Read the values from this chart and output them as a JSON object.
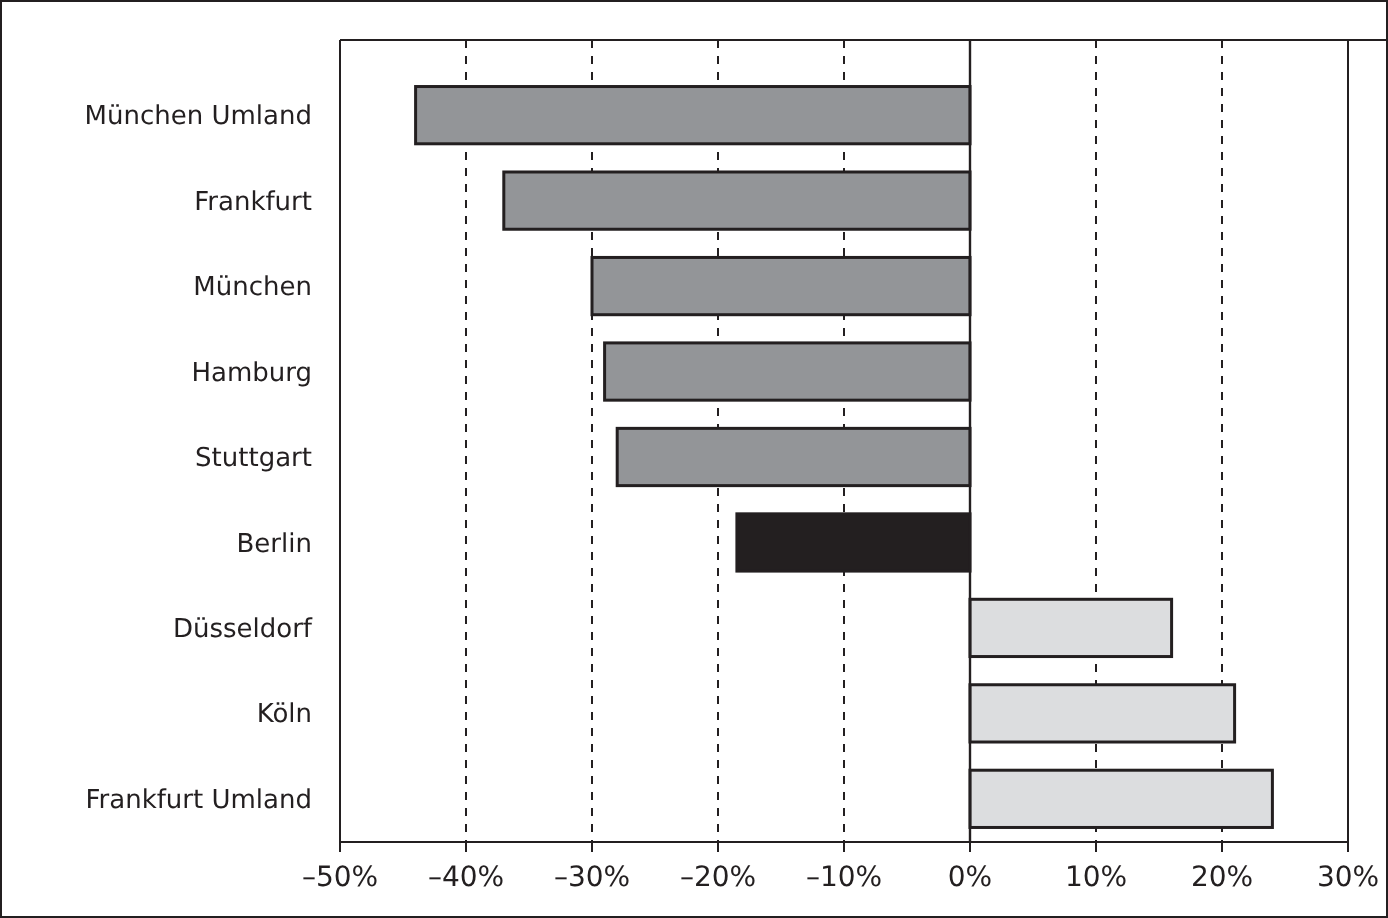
{
  "chart_data": {
    "type": "bar",
    "orientation": "horizontal",
    "categories": [
      "München Umland",
      "Frankfurt",
      "München",
      "Hamburg",
      "Stuttgart",
      "Berlin",
      "Düsseldorf",
      "Köln",
      "Frankfurt Umland"
    ],
    "values": [
      -44,
      -37,
      -30,
      -29,
      -28,
      -18.5,
      16,
      21,
      24
    ],
    "colors": [
      "#939598",
      "#939598",
      "#939598",
      "#939598",
      "#939598",
      "#231f20",
      "#dcdddf",
      "#dcdddf",
      "#dcdddf"
    ],
    "xlim": [
      -50,
      30
    ],
    "xticks": [
      {
        "value": -50,
        "label": "–50%"
      },
      {
        "value": -40,
        "label": "–40%"
      },
      {
        "value": -30,
        "label": "–30%"
      },
      {
        "value": -20,
        "label": "–20%"
      },
      {
        "value": -10,
        "label": "–10%"
      },
      {
        "value": 0,
        "label": "0%"
      },
      {
        "value": 10,
        "label": "10%"
      },
      {
        "value": 20,
        "label": "20%"
      },
      {
        "value": 30,
        "label": "30%"
      }
    ],
    "grid": "x"
  }
}
